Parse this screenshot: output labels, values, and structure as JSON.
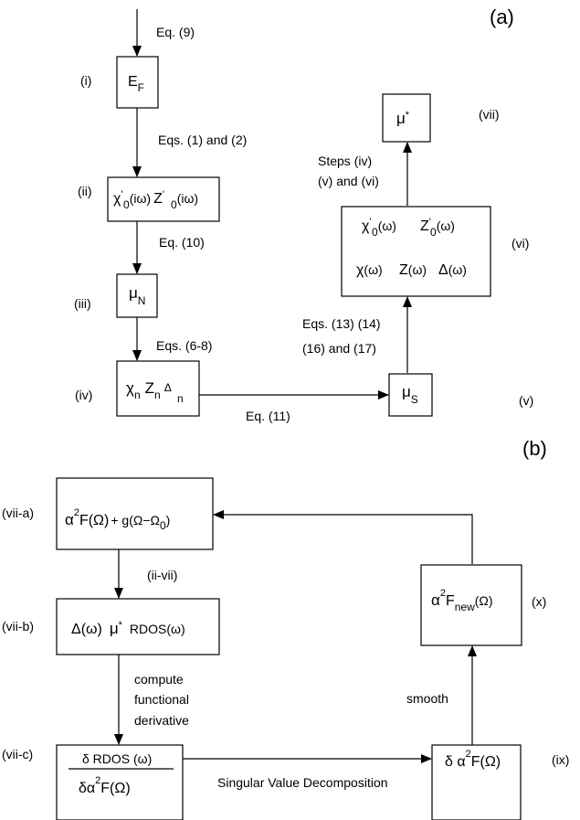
{
  "panel_a": {
    "label": "(a)",
    "steps": {
      "i": "(i)",
      "ii": "(ii)",
      "iii": "(iii)",
      "iv": "(iv)",
      "v": "(v)",
      "vi": "(vi)",
      "vii": "(vii)"
    },
    "boxes": {
      "ef": {
        "main": "E",
        "sub": "F"
      },
      "chi0": {
        "chi": "χ",
        "sub0": "0",
        "prime": "'",
        "arg": "(iω)",
        "z": "Z"
      },
      "muN": {
        "mu": "μ",
        "sub": "N"
      },
      "chin": {
        "chi": "χ",
        "z": "Z",
        "delta": "Δ",
        "sub": "n"
      },
      "muS": {
        "mu": "μ",
        "sub": "S"
      },
      "real": {
        "chi": "χ",
        "z": "Z",
        "delta": "Δ",
        "sub0": "0",
        "prime": "'",
        "arg": "(ω)"
      },
      "mustar": {
        "mu": "μ",
        "star": "*"
      }
    },
    "edges": {
      "eq9": "Eq. (9)",
      "eq12_line": "Eqs. (1) and (2)",
      "eq10": "Eq. (10)",
      "eq68": "Eqs. (6-8)",
      "eq11": "Eq. (11)",
      "eq1314": "Eqs. (13) (14)",
      "eq1617": "(16) and (17)",
      "steps_iv": "Steps (iv)",
      "steps_v_vi": "(v) and (vi)"
    }
  },
  "panel_b": {
    "label": "(b)",
    "steps": {
      "viia": "(vii-a)",
      "viib": "(vii-b)",
      "viic": "(vii-c)",
      "ix": "(ix)",
      "x": "(x)"
    },
    "boxes": {
      "a2f": {
        "alpha": "α",
        "sup2": "2",
        "f": "F(Ω)",
        "plus": "+ g(Ω−Ω",
        "sub0": "0",
        "close": ")"
      },
      "viib": {
        "delta": "Δ(ω)",
        "mu": "μ",
        "star": "*",
        "rdos": "RDOS(ω)"
      },
      "deriv": {
        "num": "δ  RDOS (ω)",
        "den_delta": "δα",
        "sup2": "2",
        "den_f": "F(Ω)"
      },
      "dalpha": {
        "delta": "δ α",
        "sup2": "2",
        "f": "F(Ω)"
      },
      "new": {
        "alpha": "α",
        "sup2": "2",
        "f": "F",
        "sub": "new",
        "arg": "(Ω)"
      }
    },
    "edges": {
      "ii_vii": "(ii-vii)",
      "compute": "compute",
      "functional": "functional",
      "derivative": "derivative",
      "svd": "Singular Value Decomposition",
      "smooth": "smooth"
    }
  }
}
